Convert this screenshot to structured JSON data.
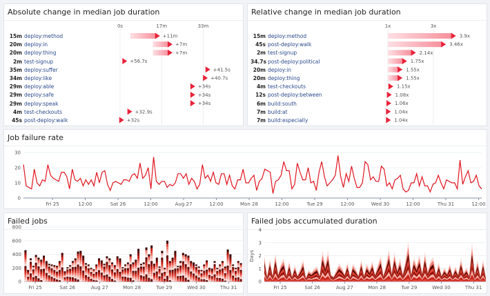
{
  "colors": {
    "accent": "#e8233a",
    "line": "#e0141e",
    "link": "#2b4a8c"
  },
  "abs_panel": {
    "title": "Absolute change in median job duration",
    "axis_ticks": [
      "0s",
      "17m",
      "33m"
    ],
    "axis_minutes": [
      0,
      16.5,
      33
    ],
    "rows": [
      {
        "value": "15m",
        "name": "deploy:method",
        "change": "+11m",
        "new_min": 15,
        "delta_min": 11
      },
      {
        "value": "20m",
        "name": "deploy:in",
        "change": "+7m",
        "new_min": 20,
        "delta_min": 7
      },
      {
        "value": "20m",
        "name": "deploy:thing",
        "change": "+7m",
        "new_min": 20,
        "delta_min": 7
      },
      {
        "value": "2m",
        "name": "test-signup",
        "change": "+56.7s",
        "new_min": 2,
        "delta_min": 0.95
      },
      {
        "value": "35m",
        "name": "deploy:suffer",
        "change": "+41.5s",
        "new_min": 35,
        "delta_min": 0.69
      },
      {
        "value": "34m",
        "name": "deploy:like",
        "change": "+40.7s",
        "new_min": 34,
        "delta_min": 0.68
      },
      {
        "value": "29m",
        "name": "deploy:able",
        "change": "+34s",
        "new_min": 29,
        "delta_min": 0.57
      },
      {
        "value": "29m",
        "name": "deploy:safe",
        "change": "+34s",
        "new_min": 29,
        "delta_min": 0.57
      },
      {
        "value": "29m",
        "name": "deploy:speak",
        "change": "+34s",
        "new_min": 29,
        "delta_min": 0.57
      },
      {
        "value": "4m",
        "name": "test-checkouts",
        "change": "+32.9s",
        "new_min": 4,
        "delta_min": 0.55
      },
      {
        "value": "45s",
        "name": "post-deploy:walk",
        "change": "+32s",
        "new_min": 0.75,
        "delta_min": 0.53
      }
    ]
  },
  "rel_panel": {
    "title": "Relative change in median job duration",
    "axis_ticks": [
      "1x",
      "3x"
    ],
    "axis_values": [
      1,
      3
    ],
    "rows": [
      {
        "value": "15m",
        "name": "deploy:method",
        "change": "3.9x",
        "ratio": 3.9
      },
      {
        "value": "45s",
        "name": "post-deploy:walk",
        "change": "3.46x",
        "ratio": 3.46
      },
      {
        "value": "2m",
        "name": "test-signup",
        "change": "2.14x",
        "ratio": 2.14
      },
      {
        "value": "34.7s",
        "name": "post-deploy:political",
        "change": "1.75x",
        "ratio": 1.75
      },
      {
        "value": "20m",
        "name": "deploy:in",
        "change": "1.55x",
        "ratio": 1.55
      },
      {
        "value": "20m",
        "name": "deploy:thing",
        "change": "1.55x",
        "ratio": 1.55
      },
      {
        "value": "4m",
        "name": "test-checkouts",
        "change": "1.15x",
        "ratio": 1.15
      },
      {
        "value": "12s",
        "name": "post-deploy:between",
        "change": "1.08x",
        "ratio": 1.08
      },
      {
        "value": "6m",
        "name": "build:south",
        "change": "1.06x",
        "ratio": 1.06
      },
      {
        "value": "7m",
        "name": "build:at",
        "change": "1.04x",
        "ratio": 1.04
      },
      {
        "value": "7m",
        "name": "build:especially",
        "change": "1.04x",
        "ratio": 1.04
      }
    ]
  },
  "chart_data": [
    {
      "type": "line",
      "title": "Job failure rate",
      "ylim": [
        0,
        30
      ],
      "yticks": [
        "0",
        "10",
        "20",
        "30"
      ],
      "xticks": [
        "Fri 25",
        "12:00",
        "Sat 26",
        "12:00",
        "Aug 27",
        "12:00",
        "Mon 28",
        "12:00",
        "Tue 29",
        "12:00",
        "Wed 30",
        "12:00",
        "Thu 31",
        "12:00"
      ],
      "x_range": [
        "Aug 24 13:00",
        "Aug 31 12:00"
      ],
      "grid": true,
      "values": [
        22,
        8,
        7,
        6,
        19,
        10,
        8,
        12,
        11,
        22,
        15,
        13,
        12,
        11,
        17,
        17,
        14,
        6,
        19,
        12,
        11,
        13,
        8,
        12,
        9,
        12,
        8,
        17,
        10,
        17,
        18,
        9,
        5,
        10,
        11,
        10,
        9,
        12,
        12,
        11,
        15,
        16,
        13,
        23,
        13,
        15,
        20,
        6,
        27,
        11,
        9,
        11,
        11,
        7,
        9,
        8,
        10,
        16,
        16,
        13,
        16,
        9,
        13,
        11,
        6,
        9,
        22,
        13,
        15,
        11,
        17,
        10,
        9,
        16,
        16,
        9,
        15,
        8,
        6,
        12,
        12,
        19,
        10,
        10,
        13,
        15,
        5,
        11,
        13,
        19,
        18,
        17,
        3,
        11,
        12,
        15,
        24,
        18,
        18,
        6,
        9,
        23,
        17,
        12,
        12,
        20,
        10,
        11,
        5,
        17,
        24,
        14,
        8,
        10,
        12,
        15,
        28,
        14,
        7,
        16,
        11,
        21,
        13,
        7,
        7,
        10,
        24,
        22,
        12,
        14,
        11,
        11,
        21,
        19,
        8,
        10,
        6,
        12,
        13,
        15,
        6,
        4,
        5,
        10,
        10,
        16,
        8,
        14,
        8,
        8,
        4,
        9,
        10,
        15,
        10,
        6,
        12,
        11,
        10,
        10,
        6,
        25,
        9,
        14,
        18,
        10,
        11,
        15,
        8,
        6
      ]
    },
    {
      "type": "bar",
      "stacked": true,
      "title": "Failed jobs",
      "ylim": [
        0,
        800
      ],
      "yticks": [
        "0",
        "200",
        "400",
        "600",
        "800"
      ],
      "xticks": [
        "Fri 25",
        "Sat 26",
        "Aug 27",
        "Mon 28",
        "Tue 29",
        "Wed 30",
        "Thu 31"
      ],
      "grid": true,
      "values": [
        460,
        170,
        340,
        230,
        390,
        350,
        320,
        380,
        300,
        260,
        250,
        240,
        230,
        300,
        420,
        150,
        210,
        240,
        300,
        340,
        440,
        450,
        380,
        270,
        250,
        200,
        180,
        250,
        340,
        310,
        260,
        370,
        340,
        280,
        240,
        370,
        340,
        210,
        250,
        280,
        400,
        280,
        320,
        480,
        260,
        280,
        500,
        400,
        530,
        260,
        350,
        220,
        450,
        200,
        600,
        300,
        350,
        450,
        230,
        300,
        420,
        400,
        380,
        300,
        280,
        250,
        220,
        170,
        250,
        310,
        200,
        190,
        300,
        200,
        250,
        300,
        220,
        470,
        400,
        250,
        200,
        300,
        270
      ]
    },
    {
      "type": "area",
      "stacked": true,
      "title": "Failed jobs accumulated duration",
      "ylabel": "Days",
      "ylim": [
        0,
        4
      ],
      "yticks": [
        "0",
        "1",
        "2",
        "3",
        "4"
      ],
      "xticks": [
        "Fri 25",
        "Sat 26",
        "Aug 27",
        "Mon 28",
        "Tue 29",
        "Wed 30",
        "Thu 31"
      ],
      "grid": true,
      "values": [
        2.1,
        0.4,
        1.8,
        0.5,
        2.2,
        0.6,
        1.4,
        1.8,
        0.5,
        1.6,
        0.4,
        1.3,
        0.5,
        1.0,
        1.7,
        0.3,
        0.9,
        0.7,
        1.0,
        1.2,
        0.5,
        2.4,
        1.3,
        2.4,
        0.6,
        0.4,
        0.9,
        1.4,
        1.1,
        0.6,
        1.5,
        0.4,
        1.4,
        1.0,
        0.5,
        1.7,
        0.5,
        1.4,
        0.9,
        1.6,
        0.6,
        1.3,
        2.0,
        0.5,
        1.4,
        2.5,
        0.7,
        2.3,
        1.0,
        1.8,
        0.6,
        1.7,
        3.1,
        0.6,
        1.9,
        1.2,
        2.1,
        0.7,
        2.3,
        0.8,
        1.6,
        1.9,
        0.6,
        1.5,
        0.5,
        1.1,
        0.7,
        1.4,
        0.5,
        1.2,
        0.6,
        1.8,
        0.7,
        1.1,
        0.5,
        3.0,
        0.6,
        1.7,
        0.4,
        1.7,
        0.3
      ]
    }
  ]
}
